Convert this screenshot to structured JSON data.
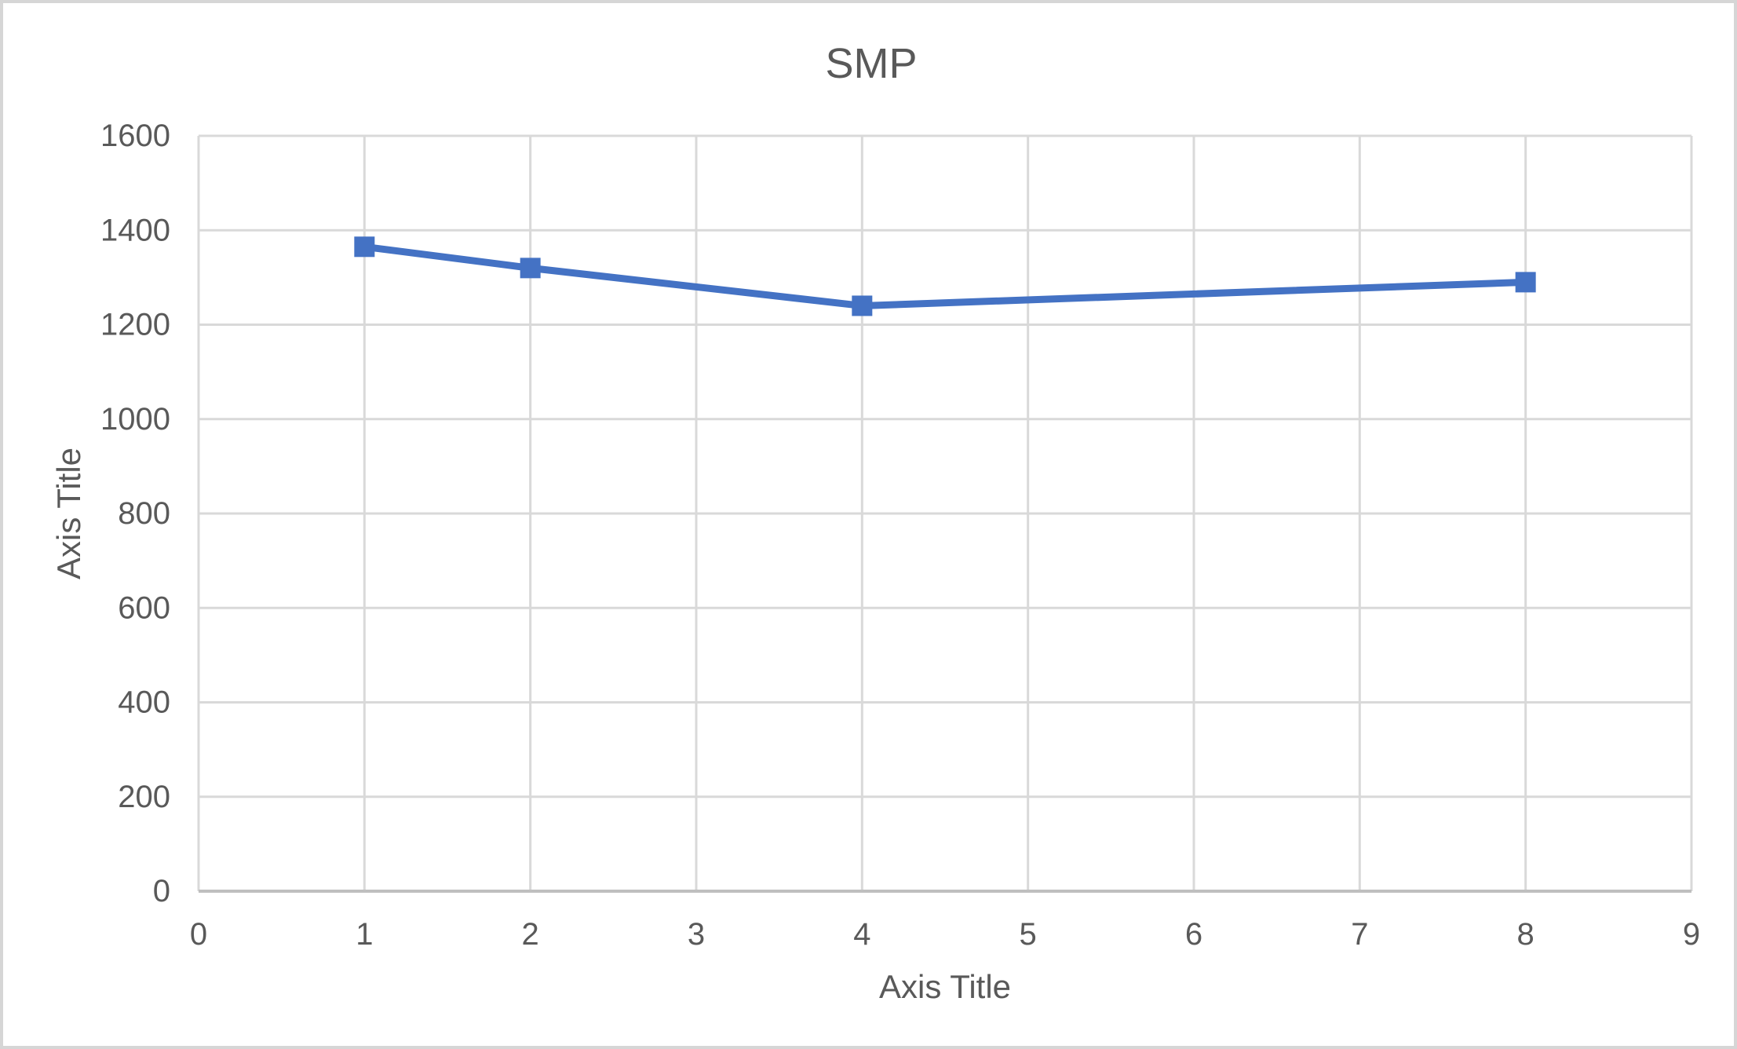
{
  "chart_data": {
    "type": "line",
    "title": "SMP",
    "xlabel": "Axis Title",
    "ylabel": "Axis Title",
    "x": [
      1,
      2,
      4,
      8
    ],
    "series": [
      {
        "name": "SMP",
        "values": [
          1365,
          1320,
          1240,
          1290
        ]
      }
    ],
    "x_ticks": [
      0,
      1,
      2,
      3,
      4,
      5,
      6,
      7,
      8,
      9
    ],
    "y_ticks": [
      0,
      200,
      400,
      600,
      800,
      1000,
      1200,
      1400,
      1600
    ],
    "xlim": [
      0,
      9
    ],
    "ylim": [
      0,
      1600
    ],
    "grid": true,
    "legend_position": "none",
    "marker": "square",
    "colors": {
      "series": "#4472C4",
      "gridline": "#D9D9D9",
      "axis_line": "#BFBFBF",
      "text": "#595959",
      "background": "#FFFFFF",
      "border": "#D6D6D6"
    }
  }
}
